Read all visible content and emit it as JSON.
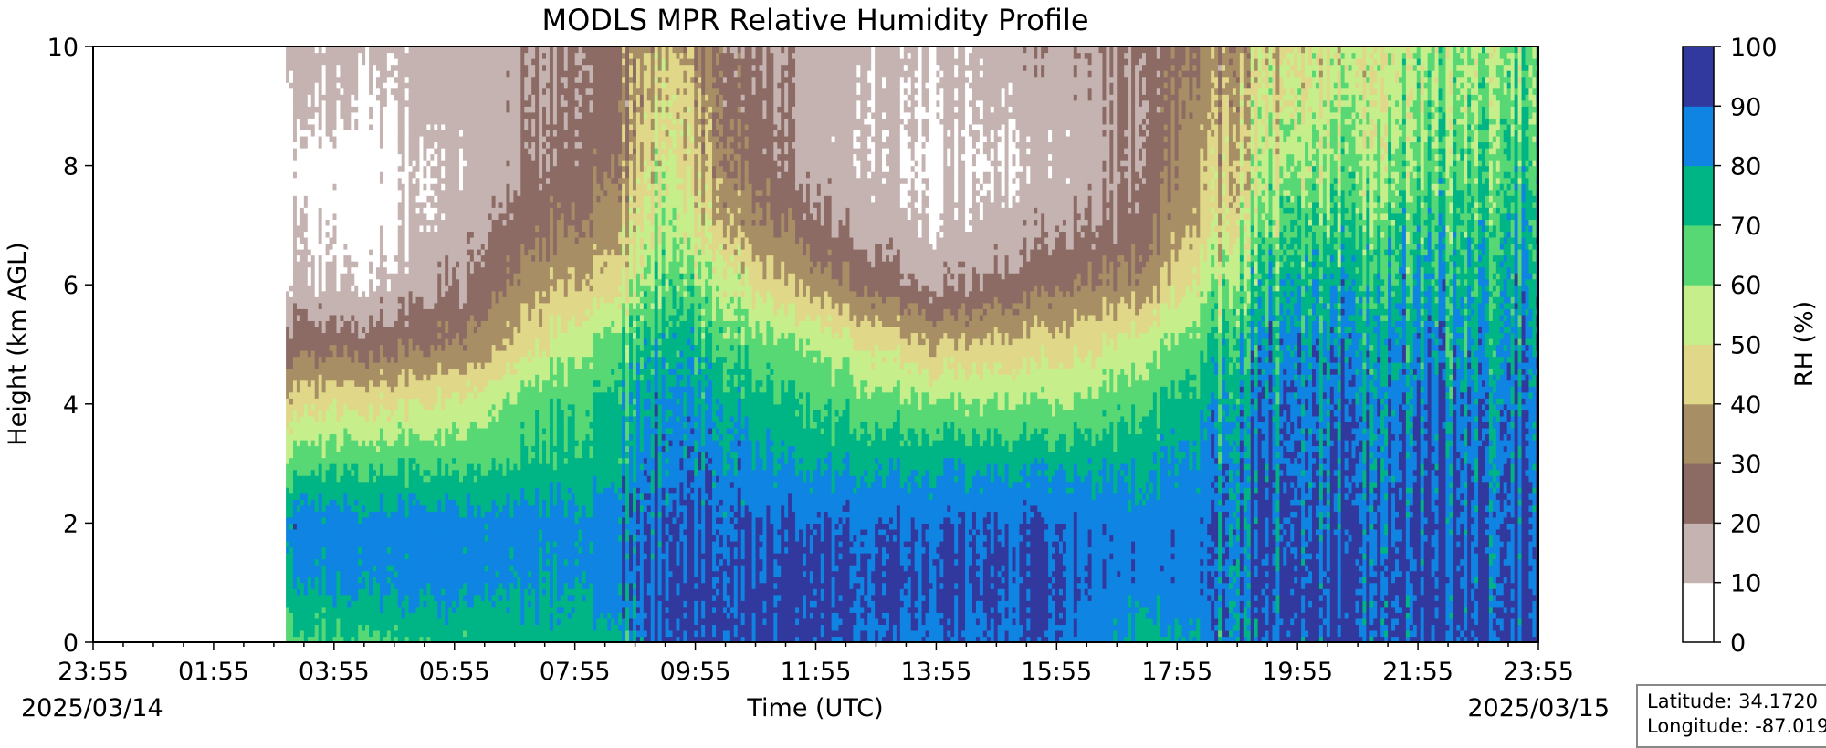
{
  "chart_data": {
    "type": "heatmap",
    "title": "MODLS MPR Relative Humidity Profile",
    "xlabel": "Time (UTC)",
    "ylabel": "Height (km AGL)",
    "x_ticks": [
      "23:55",
      "01:55",
      "03:55",
      "05:55",
      "07:55",
      "09:55",
      "11:55",
      "13:55",
      "15:55",
      "17:55",
      "19:55",
      "21:55",
      "23:55"
    ],
    "date_start": "2025/03/14",
    "date_end": "2025/03/15",
    "y_ticks": [
      "0",
      "2",
      "4",
      "6",
      "8",
      "10"
    ],
    "ylim": [
      0,
      10
    ],
    "x_range_hours": [
      0,
      24
    ],
    "data_start_hour": 3.2,
    "colorbar": {
      "label": "RH (%)",
      "levels": [
        0,
        10,
        20,
        30,
        40,
        50,
        60,
        70,
        80,
        90,
        100
      ],
      "tick_labels": [
        "0",
        "10",
        "20",
        "30",
        "40",
        "50",
        "60",
        "70",
        "80",
        "90",
        "100"
      ],
      "colors": [
        "#ffffff",
        "#c4b3b1",
        "#8d6b65",
        "#a88e64",
        "#e0d789",
        "#c6ef8c",
        "#57d874",
        "#00b585",
        "#0f84e3",
        "#32399e"
      ]
    },
    "profile_heights_km": [
      0,
      1,
      2,
      3,
      4,
      5,
      6,
      7,
      8,
      9,
      10
    ],
    "profiles": [
      {
        "time_h": 3.2,
        "rh": [
          65,
          80,
          85,
          65,
          45,
          25,
          12,
          8,
          5,
          12,
          15
        ]
      },
      {
        "time_h": 4.5,
        "rh": [
          70,
          82,
          85,
          68,
          48,
          25,
          10,
          5,
          5,
          10,
          12
        ]
      },
      {
        "time_h": 6.0,
        "rh": [
          72,
          85,
          85,
          68,
          52,
          30,
          20,
          15,
          12,
          15,
          15
        ]
      },
      {
        "time_h": 7.5,
        "rh": [
          75,
          80,
          85,
          72,
          68,
          50,
          38,
          28,
          22,
          20,
          20
        ]
      },
      {
        "time_h": 8.6,
        "rh": [
          75,
          85,
          85,
          75,
          72,
          65,
          45,
          35,
          28,
          25,
          25
        ]
      },
      {
        "time_h": 9.5,
        "rh": [
          95,
          95,
          92,
          88,
          85,
          78,
          70,
          62,
          55,
          50,
          45
        ]
      },
      {
        "time_h": 10.5,
        "rh": [
          95,
          92,
          90,
          85,
          78,
          68,
          55,
          40,
          32,
          28,
          25
        ]
      },
      {
        "time_h": 12.0,
        "rh": [
          92,
          92,
          90,
          78,
          68,
          58,
          35,
          22,
          15,
          15,
          15
        ]
      },
      {
        "time_h": 14.0,
        "rh": [
          88,
          92,
          90,
          78,
          62,
          40,
          18,
          10,
          8,
          10,
          12
        ]
      },
      {
        "time_h": 16.0,
        "rh": [
          90,
          92,
          90,
          78,
          60,
          45,
          28,
          18,
          12,
          15,
          18
        ]
      },
      {
        "time_h": 17.5,
        "rh": [
          75,
          85,
          85,
          78,
          68,
          55,
          35,
          25,
          22,
          22,
          22
        ]
      },
      {
        "time_h": 18.8,
        "rh": [
          85,
          88,
          88,
          85,
          80,
          72,
          62,
          50,
          45,
          40,
          35
        ]
      },
      {
        "time_h": 20.0,
        "rh": [
          95,
          95,
          92,
          90,
          88,
          85,
          78,
          70,
          60,
          55,
          50
        ]
      },
      {
        "time_h": 22.0,
        "rh": [
          92,
          92,
          90,
          88,
          85,
          80,
          75,
          68,
          62,
          58,
          55
        ]
      },
      {
        "time_h": 24.0,
        "rh": [
          95,
          92,
          92,
          88,
          85,
          82,
          78,
          75,
          70,
          65,
          62
        ]
      }
    ],
    "grid": false,
    "legend": "colorbar-right"
  },
  "infobox": {
    "latitude": "Latitude: 34.1720",
    "longitude": "Longitude: -87.019"
  }
}
